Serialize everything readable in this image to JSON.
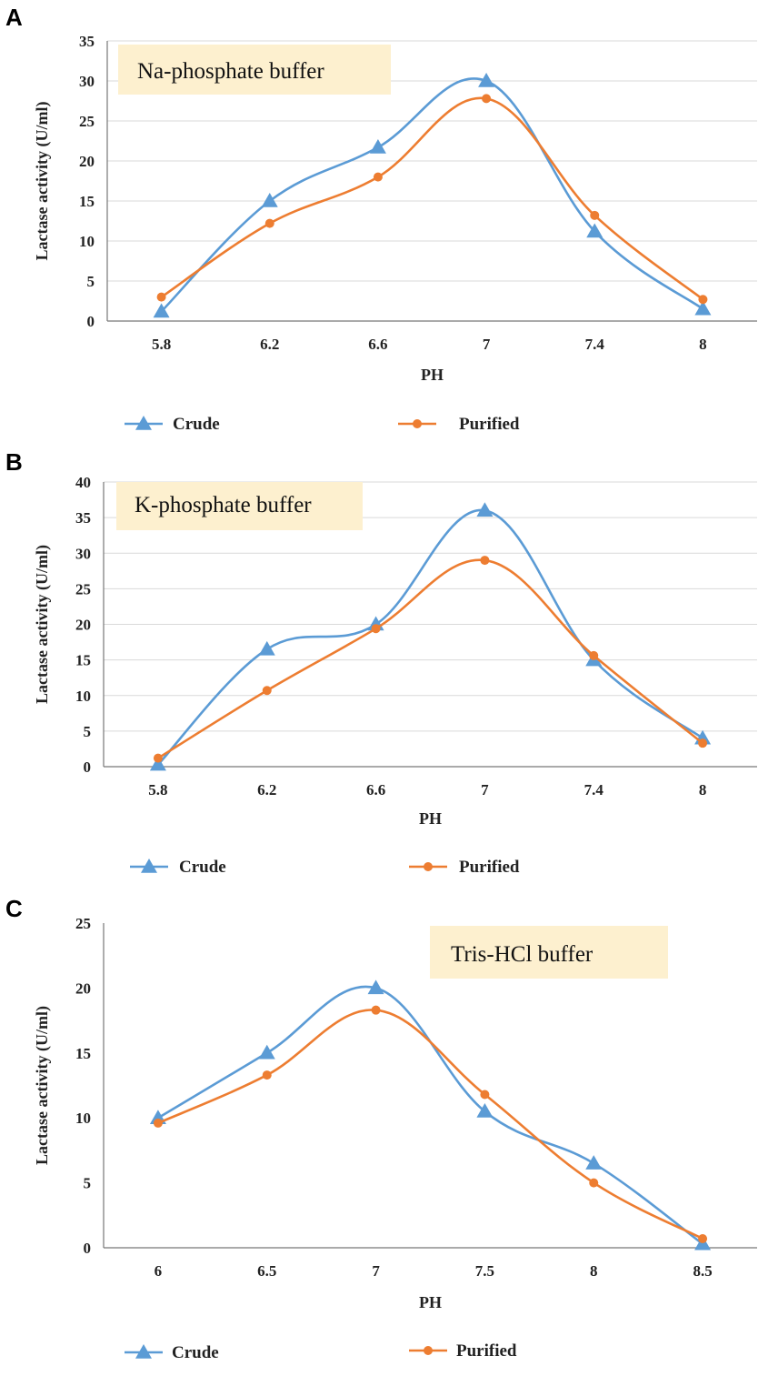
{
  "colors": {
    "crude": "#5b9bd5",
    "purified": "#ed7d31",
    "grid": "#d9d9d9",
    "label_box": "#fdf0cf"
  },
  "chart_data": [
    {
      "panel": "A",
      "type": "line",
      "title": "Na-phosphate buffer",
      "xlabel": "PH",
      "ylabel": "Lactase activity (U/ml)",
      "categories": [
        "5.8",
        "6.2",
        "6.6",
        "7",
        "7.4",
        "8"
      ],
      "ylim": [
        0,
        35
      ],
      "yticks": [
        0,
        5,
        10,
        15,
        20,
        25,
        30,
        35
      ],
      "grid": true,
      "legend": "bottom",
      "series": [
        {
          "name": "Crude",
          "marker": "triangle",
          "values": [
            1.2,
            15,
            21.7,
            30,
            11.2,
            1.5
          ]
        },
        {
          "name": "Purified",
          "marker": "circle",
          "values": [
            3.0,
            12.2,
            18.0,
            27.8,
            13.2,
            2.7
          ]
        }
      ]
    },
    {
      "panel": "B",
      "type": "line",
      "title": "K-phosphate buffer",
      "xlabel": "PH",
      "ylabel": "Lactase activity (U/ml)",
      "categories": [
        "5.8",
        "6.2",
        "6.6",
        "7",
        "7.4",
        "8"
      ],
      "ylim": [
        0,
        40
      ],
      "yticks": [
        0,
        5,
        10,
        15,
        20,
        25,
        30,
        35,
        40
      ],
      "grid": true,
      "legend": "bottom",
      "series": [
        {
          "name": "Crude",
          "marker": "triangle",
          "values": [
            0.3,
            16.5,
            20,
            36,
            15,
            4
          ]
        },
        {
          "name": "Purified",
          "marker": "circle",
          "values": [
            1.2,
            10.7,
            19.4,
            29,
            15.6,
            3.3
          ]
        }
      ]
    },
    {
      "panel": "C",
      "type": "line",
      "title": "Tris-HCl buffer",
      "xlabel": "PH",
      "ylabel": "Lactase activity (U/ml)",
      "categories": [
        "6",
        "6.5",
        "7",
        "7.5",
        "8",
        "8.5"
      ],
      "ylim": [
        0,
        25
      ],
      "yticks": [
        0,
        5,
        10,
        15,
        20,
        25
      ],
      "grid": false,
      "legend": "bottom",
      "series": [
        {
          "name": "Crude",
          "marker": "triangle",
          "values": [
            10,
            15,
            20,
            10.5,
            6.5,
            0.3
          ]
        },
        {
          "name": "Purified",
          "marker": "circle",
          "values": [
            9.6,
            13.3,
            18.3,
            11.8,
            5.0,
            0.7
          ]
        }
      ]
    }
  ]
}
